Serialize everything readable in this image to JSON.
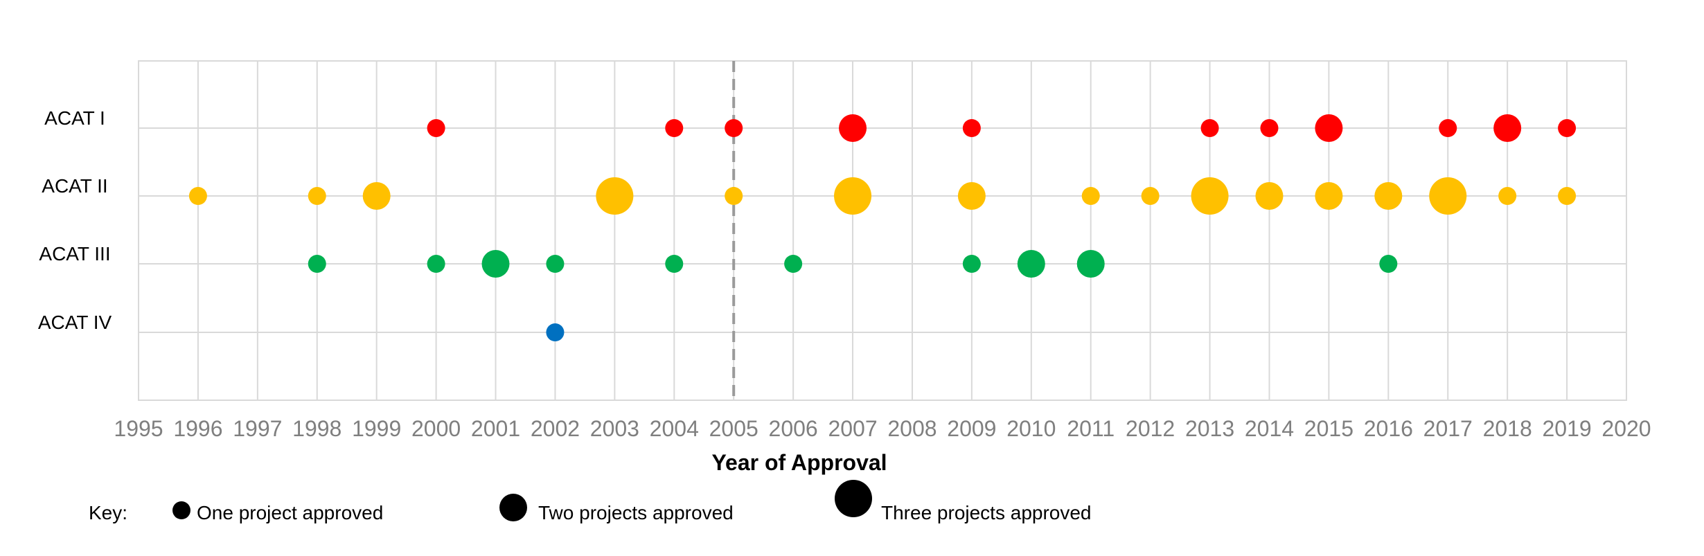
{
  "chart_data": {
    "type": "scatter",
    "title": "",
    "xlabel": "Year of Approval",
    "ylabel": "",
    "xlim": [
      1995,
      2020
    ],
    "x_ticks": [
      "1995",
      "1996",
      "1997",
      "1998",
      "1999",
      "2000",
      "2001",
      "2002",
      "2003",
      "2004",
      "2005",
      "2006",
      "2007",
      "2008",
      "2009",
      "2010",
      "2011",
      "2012",
      "2013",
      "2014",
      "2015",
      "2016",
      "2017",
      "2018",
      "2019",
      "2020"
    ],
    "categories": [
      "ACAT I",
      "ACAT II",
      "ACAT III",
      "ACAT IV"
    ],
    "grid": true,
    "reference_line": {
      "x": 2005,
      "style": "dashed",
      "color": "#9a9a9a"
    },
    "series": [
      {
        "category": "ACAT I",
        "color": "#ff0000",
        "points": [
          {
            "x": 2000,
            "count": 1
          },
          {
            "x": 2004,
            "count": 1
          },
          {
            "x": 2005,
            "count": 1
          },
          {
            "x": 2007,
            "count": 2
          },
          {
            "x": 2009,
            "count": 1
          },
          {
            "x": 2013,
            "count": 1
          },
          {
            "x": 2014,
            "count": 1
          },
          {
            "x": 2015,
            "count": 2
          },
          {
            "x": 2017,
            "count": 1
          },
          {
            "x": 2018,
            "count": 2
          },
          {
            "x": 2019,
            "count": 1
          }
        ]
      },
      {
        "category": "ACAT II",
        "color": "#ffc000",
        "points": [
          {
            "x": 1996,
            "count": 1
          },
          {
            "x": 1998,
            "count": 1
          },
          {
            "x": 1999,
            "count": 2
          },
          {
            "x": 2003,
            "count": 3
          },
          {
            "x": 2005,
            "count": 1
          },
          {
            "x": 2007,
            "count": 3
          },
          {
            "x": 2009,
            "count": 2
          },
          {
            "x": 2011,
            "count": 1
          },
          {
            "x": 2012,
            "count": 1
          },
          {
            "x": 2013,
            "count": 3
          },
          {
            "x": 2014,
            "count": 2
          },
          {
            "x": 2015,
            "count": 2
          },
          {
            "x": 2016,
            "count": 2
          },
          {
            "x": 2017,
            "count": 3
          },
          {
            "x": 2018,
            "count": 1
          },
          {
            "x": 2019,
            "count": 1
          }
        ]
      },
      {
        "category": "ACAT III",
        "color": "#00b050",
        "points": [
          {
            "x": 1998,
            "count": 1
          },
          {
            "x": 2000,
            "count": 1
          },
          {
            "x": 2001,
            "count": 2
          },
          {
            "x": 2002,
            "count": 1
          },
          {
            "x": 2004,
            "count": 1
          },
          {
            "x": 2006,
            "count": 1
          },
          {
            "x": 2009,
            "count": 1
          },
          {
            "x": 2010,
            "count": 2
          },
          {
            "x": 2011,
            "count": 2
          },
          {
            "x": 2016,
            "count": 1
          }
        ]
      },
      {
        "category": "ACAT IV",
        "color": "#0070c0",
        "points": [
          {
            "x": 2002,
            "count": 1
          }
        ]
      }
    ]
  },
  "key": {
    "label": "Key:",
    "items": [
      {
        "count": 1,
        "label": "One project approved"
      },
      {
        "count": 2,
        "label": "Two projects approved"
      },
      {
        "count": 3,
        "label": "Three projects approved"
      }
    ]
  }
}
